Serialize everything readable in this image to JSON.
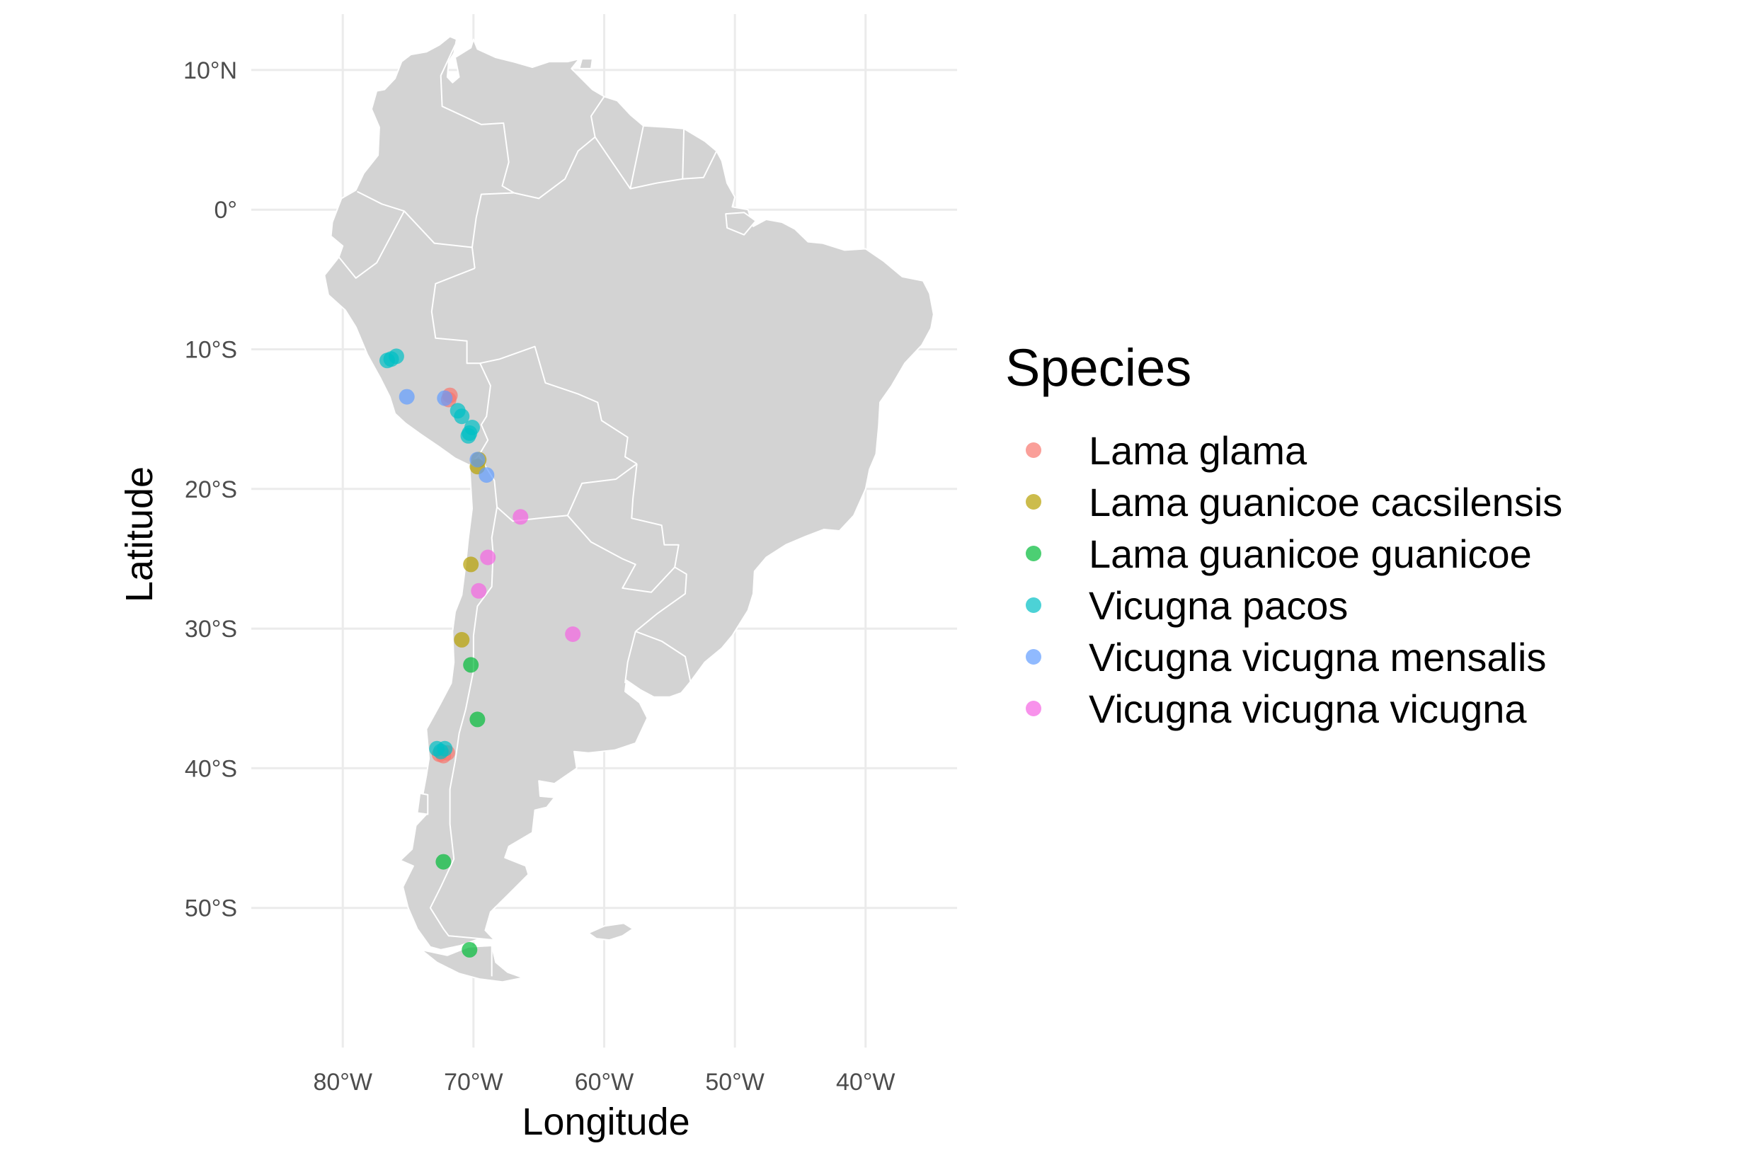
{
  "chart_data": {
    "type": "scatter",
    "xlabel": "Longitude",
    "ylabel": "Latitude",
    "xlim": [
      -87,
      -33
    ],
    "ylim": [
      -60,
      14
    ],
    "x_ticks": [
      {
        "value": -80,
        "label": "80°W"
      },
      {
        "value": -70,
        "label": "70°W"
      },
      {
        "value": -60,
        "label": "60°W"
      },
      {
        "value": -50,
        "label": "50°W"
      },
      {
        "value": -40,
        "label": "40°W"
      }
    ],
    "y_ticks": [
      {
        "value": 10,
        "label": "10°N"
      },
      {
        "value": 0,
        "label": "0°"
      },
      {
        "value": -10,
        "label": "10°S"
      },
      {
        "value": -20,
        "label": "20°S"
      },
      {
        "value": -30,
        "label": "30°S"
      },
      {
        "value": -40,
        "label": "40°S"
      },
      {
        "value": -50,
        "label": "50°S"
      }
    ],
    "grid": true,
    "legend": {
      "title": "Species",
      "position": "right"
    },
    "basemap": "South America with country borders",
    "series": [
      {
        "name": "Lama glama",
        "color": "#F8766D",
        "points": [
          [
            -71.8,
            -13.3
          ],
          [
            -71.9,
            -13.6
          ],
          [
            -72.6,
            -39.0
          ],
          [
            -72.3,
            -39.1
          ],
          [
            -72.0,
            -38.9
          ]
        ]
      },
      {
        "name": "Lama guanicoe cacsilensis",
        "color": "#B79F00",
        "points": [
          [
            -69.6,
            -17.9
          ],
          [
            -69.7,
            -18.4
          ],
          [
            -70.2,
            -25.4
          ],
          [
            -70.9,
            -30.8
          ]
        ]
      },
      {
        "name": "Lama guanicoe guanicoe",
        "color": "#00BA38",
        "points": [
          [
            -70.2,
            -32.6
          ],
          [
            -69.7,
            -36.5
          ],
          [
            -72.3,
            -46.7
          ],
          [
            -70.3,
            -53.0
          ]
        ]
      },
      {
        "name": "Vicugna pacos",
        "color": "#00BFC4",
        "points": [
          [
            -76.6,
            -10.8
          ],
          [
            -76.3,
            -10.7
          ],
          [
            -75.9,
            -10.5
          ],
          [
            -71.2,
            -14.4
          ],
          [
            -70.9,
            -14.8
          ],
          [
            -70.1,
            -15.6
          ],
          [
            -70.3,
            -16.0
          ],
          [
            -70.4,
            -16.2
          ],
          [
            -72.8,
            -38.6
          ],
          [
            -72.2,
            -38.6
          ],
          [
            -72.5,
            -38.8
          ]
        ]
      },
      {
        "name": "Vicugna vicugna mensalis",
        "color": "#619CFF",
        "points": [
          [
            -75.1,
            -13.4
          ],
          [
            -72.2,
            -13.5
          ],
          [
            -69.7,
            -17.9
          ],
          [
            -69.0,
            -19.0
          ]
        ]
      },
      {
        "name": "Vicugna vicugna vicugna",
        "color": "#F564E3",
        "points": [
          [
            -66.4,
            -22.0
          ],
          [
            -68.9,
            -24.9
          ],
          [
            -69.6,
            -27.3
          ],
          [
            -62.4,
            -30.4
          ]
        ]
      }
    ]
  }
}
